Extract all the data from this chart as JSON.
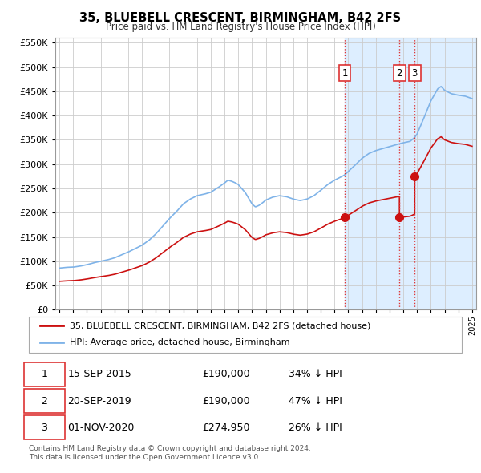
{
  "title": "35, BLUEBELL CRESCENT, BIRMINGHAM, B42 2FS",
  "subtitle": "Price paid vs. HM Land Registry's House Price Index (HPI)",
  "background_color": "#ffffff",
  "plot_bg_color": "#ffffff",
  "grid_color": "#cccccc",
  "hpi_color": "#7fb3e8",
  "price_color": "#cc1111",
  "vline_color": "#dd3333",
  "highlight_bg": "#ddeeff",
  "transactions": [
    {
      "date": 2015.75,
      "price": 190000,
      "label": "1"
    },
    {
      "date": 2019.72,
      "price": 190000,
      "label": "2"
    },
    {
      "date": 2020.83,
      "price": 274950,
      "label": "3"
    }
  ],
  "legend_items": [
    {
      "label": "35, BLUEBELL CRESCENT, BIRMINGHAM, B42 2FS (detached house)",
      "color": "#cc1111"
    },
    {
      "label": "HPI: Average price, detached house, Birmingham",
      "color": "#7fb3e8"
    }
  ],
  "table_data": [
    {
      "num": "1",
      "date": "15-SEP-2015",
      "price": "£190,000",
      "note": "34% ↓ HPI"
    },
    {
      "num": "2",
      "date": "20-SEP-2019",
      "price": "£190,000",
      "note": "47% ↓ HPI"
    },
    {
      "num": "3",
      "date": "01-NOV-2020",
      "price": "£274,950",
      "note": "26% ↓ HPI"
    }
  ],
  "footer": "Contains HM Land Registry data © Crown copyright and database right 2024.\nThis data is licensed under the Open Government Licence v3.0.",
  "ylim": [
    0,
    560000
  ],
  "xlim": [
    1994.7,
    2025.3
  ],
  "yticks": [
    0,
    50000,
    100000,
    150000,
    200000,
    250000,
    300000,
    350000,
    400000,
    450000,
    500000,
    550000
  ]
}
